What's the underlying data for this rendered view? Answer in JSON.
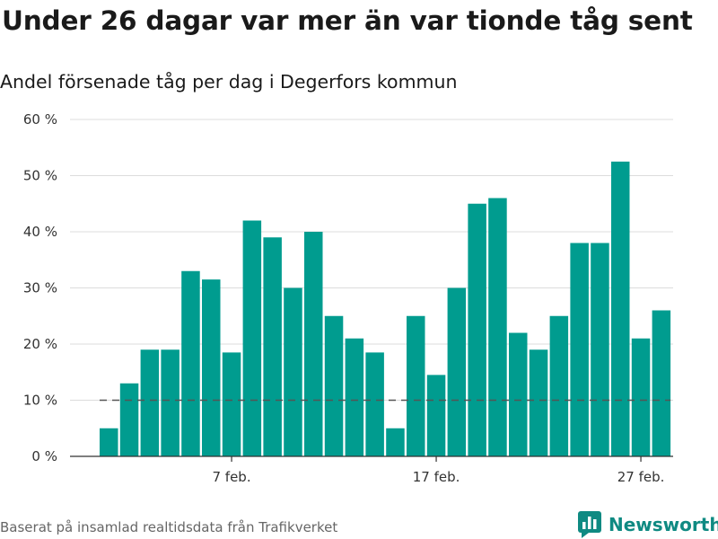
{
  "header": {
    "title": "Under 26 dagar var mer än var tionde tåg sent",
    "subtitle": "Andel försenade tåg per dag i Degerfors kommun"
  },
  "footer": {
    "source": "Baserat på insamlad realtidsdata från Trafikverket",
    "brand_name": "Newsworthy",
    "brand_icon": "bar-chart-speech-bubble-icon"
  },
  "colors": {
    "bar": "#009c8f",
    "reference_line": "#555555",
    "grid": "#dcdcdc",
    "brand": "#0f8a82"
  },
  "chart_data": {
    "type": "bar",
    "x_labels": [
      "7 feb.",
      "17 feb.",
      "27 feb."
    ],
    "x_label_indices": [
      6,
      16,
      26
    ],
    "values": [
      5,
      13,
      19,
      19,
      33,
      31.5,
      18.5,
      42,
      39,
      30,
      40,
      25,
      21,
      18.5,
      5,
      25,
      14.5,
      30,
      45,
      46,
      22,
      19,
      25,
      38,
      38,
      52.5,
      21,
      26
    ],
    "ylim": [
      0,
      60
    ],
    "y_ticks": [
      0,
      10,
      20,
      30,
      40,
      50,
      60
    ],
    "y_tick_labels": [
      "0 %",
      "10 %",
      "20 %",
      "30 %",
      "40 %",
      "50 %",
      "60 %"
    ],
    "reference_line": 10,
    "reference_line_style": "dashed",
    "grid": true
  }
}
